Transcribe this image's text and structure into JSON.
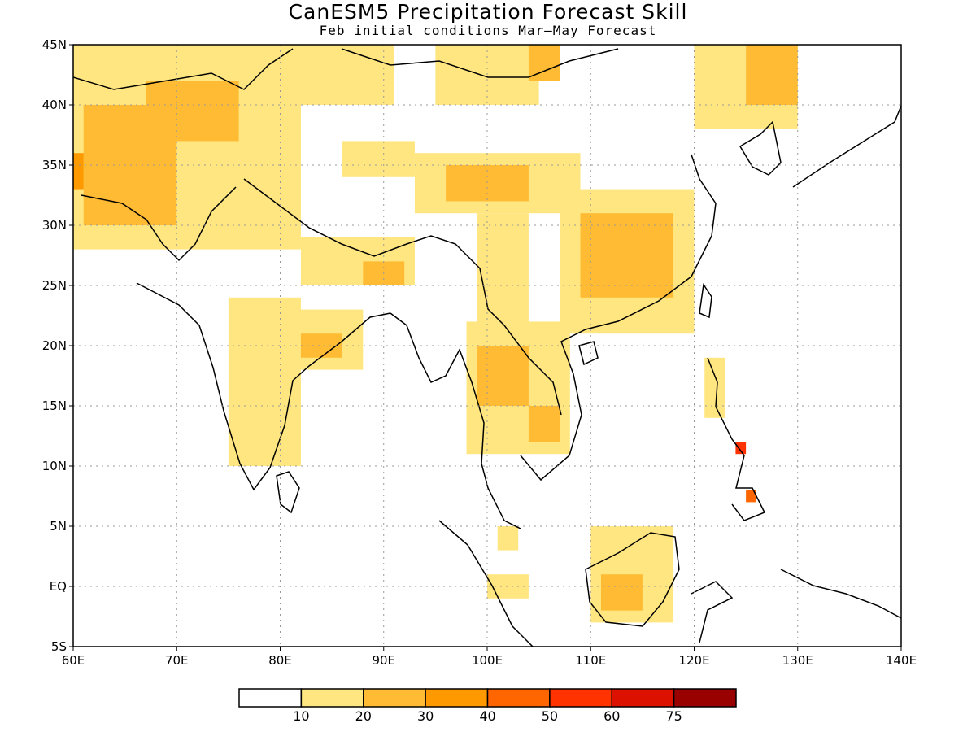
{
  "title": "CanESM5 Precipitation Forecast Skill",
  "subtitle": "Feb initial conditions  Mar—May Forecast",
  "lat_labels": [
    "45N",
    "40N",
    "35N",
    "30N",
    "25N",
    "20N",
    "15N",
    "10N",
    "5N",
    "EQ",
    "5S"
  ],
  "lon_labels": [
    "60E",
    "70E",
    "80E",
    "90E",
    "100E",
    "110E",
    "120E",
    "130E",
    "140E"
  ],
  "colorbar": {
    "colors": [
      "#ffffff",
      "#ffe680",
      "#ffbb33",
      "#ff9900",
      "#ff6600",
      "#ff3300",
      "#dd1100",
      "#990000"
    ],
    "labels": [
      "10",
      "20",
      "30",
      "40",
      "50",
      "60",
      "75"
    ]
  },
  "map_data": {
    "lon_range": [
      60,
      140
    ],
    "lat_range": [
      -5,
      45
    ],
    "grid": true,
    "skill_regions": [
      {
        "level": 1,
        "lon": [
          60,
          82
        ],
        "lat": [
          28,
          45
        ]
      },
      {
        "level": 2,
        "lon": [
          61,
          70
        ],
        "lat": [
          30,
          40
        ]
      },
      {
        "level": 2,
        "lon": [
          67,
          76
        ],
        "lat": [
          37,
          42
        ]
      },
      {
        "level": 3,
        "lon": [
          60,
          61
        ],
        "lat": [
          33,
          36
        ]
      },
      {
        "level": 1,
        "lon": [
          82,
          91
        ],
        "lat": [
          40,
          45
        ]
      },
      {
        "level": 1,
        "lon": [
          95,
          105
        ],
        "lat": [
          40,
          45
        ]
      },
      {
        "level": 2,
        "lon": [
          104,
          107
        ],
        "lat": [
          42,
          45
        ]
      },
      {
        "level": 1,
        "lon": [
          86,
          93
        ],
        "lat": [
          34,
          37
        ]
      },
      {
        "level": 1,
        "lon": [
          93,
          109
        ],
        "lat": [
          31,
          36
        ]
      },
      {
        "level": 2,
        "lon": [
          96,
          104
        ],
        "lat": [
          32,
          35
        ]
      },
      {
        "level": 1,
        "lon": [
          99,
          104
        ],
        "lat": [
          21,
          31
        ]
      },
      {
        "level": 1,
        "lon": [
          107,
          120
        ],
        "lat": [
          21,
          33
        ]
      },
      {
        "level": 2,
        "lon": [
          109,
          118
        ],
        "lat": [
          24,
          31
        ]
      },
      {
        "level": 1,
        "lon": [
          120,
          130
        ],
        "lat": [
          38,
          45
        ]
      },
      {
        "level": 2,
        "lon": [
          125,
          130
        ],
        "lat": [
          40,
          45
        ]
      },
      {
        "level": 1,
        "lon": [
          82,
          93
        ],
        "lat": [
          25,
          29
        ]
      },
      {
        "level": 2,
        "lon": [
          88,
          92
        ],
        "lat": [
          25,
          27
        ]
      },
      {
        "level": 1,
        "lon": [
          75,
          82
        ],
        "lat": [
          10,
          24
        ]
      },
      {
        "level": 1,
        "lon": [
          80,
          88
        ],
        "lat": [
          18,
          23
        ]
      },
      {
        "level": 2,
        "lon": [
          82,
          86
        ],
        "lat": [
          19,
          21
        ]
      },
      {
        "level": 1,
        "lon": [
          98,
          108
        ],
        "lat": [
          11,
          22
        ]
      },
      {
        "level": 2,
        "lon": [
          99,
          104
        ],
        "lat": [
          15,
          20
        ]
      },
      {
        "level": 2,
        "lon": [
          104,
          107
        ],
        "lat": [
          12,
          15
        ]
      },
      {
        "level": 1,
        "lon": [
          110,
          118
        ],
        "lat": [
          -3,
          5
        ]
      },
      {
        "level": 2,
        "lon": [
          111,
          115
        ],
        "lat": [
          -2,
          1
        ]
      },
      {
        "level": 1,
        "lon": [
          100,
          104
        ],
        "lat": [
          -1,
          1
        ]
      },
      {
        "level": 1,
        "lon": [
          101,
          103
        ],
        "lat": [
          3,
          5
        ]
      },
      {
        "level": 1,
        "lon": [
          121,
          123
        ],
        "lat": [
          14,
          19
        ]
      },
      {
        "level": 4,
        "lon": [
          125,
          126
        ],
        "lat": [
          7,
          8
        ]
      },
      {
        "level": 5,
        "lon": [
          124,
          125
        ],
        "lat": [
          11,
          12
        ]
      }
    ]
  }
}
